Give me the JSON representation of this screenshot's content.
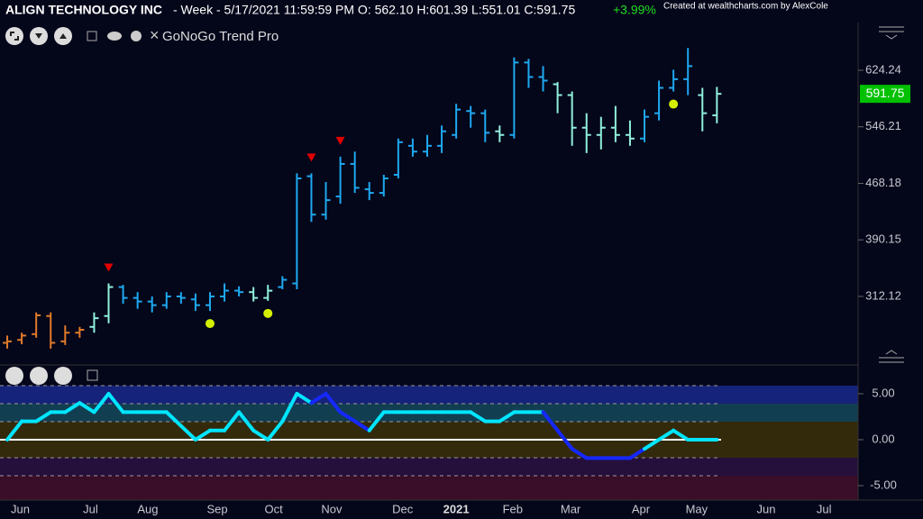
{
  "header": {
    "title": "ALIGN TECHNOLOGY INC",
    "info": "- Week - 5/17/2021 11:59:59 PM O: 562.10 H:601.39 L:551.01 C:591.75",
    "change": "+3.99%",
    "credit": "Created at wealthcharts.com by AlexCole",
    "indicator": "GoNoGo Trend Pro"
  },
  "chart_data": [
    {
      "type": "ohlc",
      "xlim": [
        -0.5,
        58.75
      ],
      "xticks": [
        {
          "value": 0.9,
          "label": "Jun"
        },
        {
          "value": 5.75,
          "label": "Jul"
        },
        {
          "value": 9.7,
          "label": "Aug"
        },
        {
          "value": 14.5,
          "label": "Sep"
        },
        {
          "value": 18.4,
          "label": "Oct"
        },
        {
          "value": 22.4,
          "label": "Nov"
        },
        {
          "value": 27.3,
          "label": "Dec"
        },
        {
          "value": 31,
          "label": "2021"
        },
        {
          "value": 34.9,
          "label": "Feb"
        },
        {
          "value": 38.9,
          "label": "Mar"
        },
        {
          "value": 43.75,
          "label": "Apr"
        },
        {
          "value": 47.6,
          "label": "May"
        },
        {
          "value": 52.4,
          "label": "Jun"
        },
        {
          "value": 56.4,
          "label": "Jul"
        }
      ],
      "ylim": [
        223.7,
        690.2
      ],
      "yticks": [
        312.12,
        390.15,
        468.18,
        546.21,
        624.24
      ],
      "open": [
        248,
        252,
        260,
        285,
        250,
        262,
        270,
        285,
        325,
        310,
        305,
        300,
        312,
        308,
        300,
        312,
        320,
        318,
        310,
        325,
        330,
        478,
        425,
        450,
        495,
        460,
        455,
        480,
        520,
        512,
        520,
        535,
        568,
        565,
        540,
        535,
        635,
        615,
        605,
        590,
        545,
        535,
        545,
        535,
        530,
        565,
        600,
        612,
        590,
        562.1
      ],
      "high": [
        258,
        262,
        290,
        290,
        272,
        270,
        290,
        330,
        328,
        318,
        312,
        318,
        318,
        316,
        318,
        330,
        326,
        325,
        328,
        340,
        482,
        482,
        470,
        505,
        512,
        470,
        480,
        530,
        530,
        535,
        548,
        578,
        575,
        570,
        548,
        642,
        640,
        630,
        608,
        595,
        565,
        560,
        575,
        555,
        570,
        610,
        625,
        655,
        600,
        601.39
      ],
      "low": [
        240,
        246,
        255,
        240,
        245,
        255,
        262,
        275,
        302,
        295,
        290,
        295,
        302,
        292,
        292,
        305,
        312,
        305,
        306,
        322,
        322,
        415,
        418,
        440,
        455,
        445,
        450,
        475,
        505,
        505,
        510,
        530,
        545,
        525,
        525,
        530,
        600,
        595,
        565,
        520,
        510,
        515,
        525,
        520,
        525,
        555,
        595,
        590,
        540,
        551.01
      ],
      "close": [
        250,
        258,
        286,
        248,
        262,
        266,
        282,
        325,
        310,
        305,
        300,
        312,
        310,
        300,
        312,
        320,
        318,
        310,
        320,
        335,
        475,
        425,
        445,
        495,
        462,
        455,
        475,
        525,
        512,
        520,
        540,
        570,
        565,
        538,
        535,
        635,
        615,
        610,
        590,
        545,
        535,
        545,
        535,
        530,
        560,
        600,
        612,
        630,
        565,
        591.75
      ],
      "colors": [
        "#e07a2b",
        "#e07a2b",
        "#e07a2b",
        "#e07a2b",
        "#e07a2b",
        "#e07a2b",
        "#8ff0dc",
        "#8ff0dc",
        "#1ea8f0",
        "#1ea8f0",
        "#1ea8f0",
        "#1ea8f0",
        "#1ea8f0",
        "#1ea8f0",
        "#1ea8f0",
        "#1ea8f0",
        "#1ea8f0",
        "#8ff0dc",
        "#8ff0dc",
        "#1ea8f0",
        "#1ea8f0",
        "#1ea8f0",
        "#1ea8f0",
        "#1ea8f0",
        "#1ea8f0",
        "#1ea8f0",
        "#1ea8f0",
        "#1ea8f0",
        "#1ea8f0",
        "#1ea8f0",
        "#1ea8f0",
        "#1ea8f0",
        "#1ea8f0",
        "#1ea8f0",
        "#8ff0dc",
        "#1ea8f0",
        "#1ea8f0",
        "#1ea8f0",
        "#8ff0dc",
        "#8ff0dc",
        "#8ff0dc",
        "#8ff0dc",
        "#8ff0dc",
        "#8ff0dc",
        "#1ea8f0",
        "#1ea8f0",
        "#1ea8f0",
        "#1ea8f0",
        "#8ff0dc",
        "#8ff0dc"
      ],
      "down_signals": [
        7,
        21,
        23
      ],
      "dot_signals": [
        14,
        18,
        46
      ],
      "last_color": "#00c000"
    },
    {
      "type": "line",
      "ylim": [
        -6.57,
        5.88
      ],
      "yticks": [
        {
          "value": 5,
          "label": "5.00"
        },
        {
          "value": 0,
          "label": "0.00"
        },
        {
          "value": -5,
          "label": "-5.00"
        }
      ],
      "values": [
        0,
        2,
        2,
        3,
        3,
        4,
        3,
        5,
        3,
        3,
        3,
        3,
        1.5,
        0,
        1,
        1,
        3,
        1,
        0,
        2,
        5,
        4,
        5,
        3,
        2,
        1,
        3,
        3,
        3,
        3,
        3,
        3,
        3,
        2,
        2,
        3,
        3,
        3,
        1,
        -1,
        -2,
        -2,
        -2,
        -2,
        -1,
        0,
        1,
        0,
        0,
        0
      ],
      "colors": [
        "#00e5ff",
        "#00e5ff",
        "#00e5ff",
        "#00e5ff",
        "#00e5ff",
        "#00e5ff",
        "#00e5ff",
        "#00e5ff",
        "#00e5ff",
        "#00e5ff",
        "#00e5ff",
        "#00e5ff",
        "#00e5ff",
        "#00e5ff",
        "#00e5ff",
        "#00e5ff",
        "#00e5ff",
        "#00e5ff",
        "#00e5ff",
        "#00e5ff",
        "#00e5ff",
        "#00e5ff",
        "#1428ff",
        "#1428ff",
        "#1428ff",
        "#1428ff",
        "#00e5ff",
        "#00e5ff",
        "#00e5ff",
        "#00e5ff",
        "#00e5ff",
        "#00e5ff",
        "#00e5ff",
        "#00e5ff",
        "#00e5ff",
        "#00e5ff",
        "#00e5ff",
        "#00e5ff",
        "#1428ff",
        "#1428ff",
        "#1428ff",
        "#1428ff",
        "#1428ff",
        "#1428ff",
        "#1428ff",
        "#00e5ff",
        "#00e5ff",
        "#00e5ff",
        "#00e5ff",
        "#00e5ff"
      ]
    }
  ]
}
